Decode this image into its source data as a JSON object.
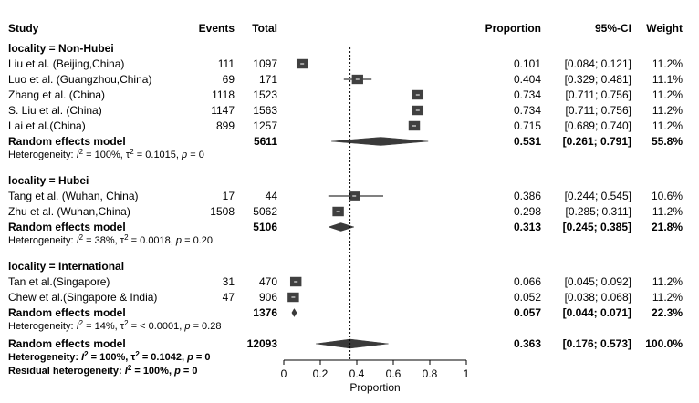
{
  "chart_data": {
    "type": "forest",
    "headers": {
      "study": "Study",
      "events": "Events",
      "total": "Total",
      "proportion": "Proportion",
      "ci": "95%-CI",
      "weight": "Weight"
    },
    "xlabel": "Proportion",
    "xlim": [
      0,
      1
    ],
    "xticks": [
      "0",
      "0.2",
      "0.4",
      "0.6",
      "0.8",
      "1"
    ],
    "reference_line": 0.363,
    "groups": [
      {
        "label": "locality = Non-Hubei",
        "studies": [
          {
            "study": "Liu et al. (Beijing,China)",
            "events": "111",
            "total": "1097",
            "proportion": 0.101,
            "lower": 0.084,
            "upper": 0.121,
            "prop_text": "0.101",
            "ci_text": "[0.084; 0.121]",
            "weight": "11.2%"
          },
          {
            "study": "Luo et al. (Guangzhou,China)",
            "events": "69",
            "total": "171",
            "proportion": 0.404,
            "lower": 0.329,
            "upper": 0.481,
            "prop_text": "0.404",
            "ci_text": "[0.329; 0.481]",
            "weight": "11.1%"
          },
          {
            "study": "Zhang et al. (China)",
            "events": "1118",
            "total": "1523",
            "proportion": 0.734,
            "lower": 0.711,
            "upper": 0.756,
            "prop_text": "0.734",
            "ci_text": "[0.711; 0.756]",
            "weight": "11.2%"
          },
          {
            "study": "S. Liu et al. (China)",
            "events": "1147",
            "total": "1563",
            "proportion": 0.734,
            "lower": 0.711,
            "upper": 0.756,
            "prop_text": "0.734",
            "ci_text": "[0.711; 0.756]",
            "weight": "11.2%"
          },
          {
            "study": "Lai et al.(China)",
            "events": "899",
            "total": "1257",
            "proportion": 0.715,
            "lower": 0.689,
            "upper": 0.74,
            "prop_text": "0.715",
            "ci_text": "[0.689; 0.740]",
            "weight": "11.2%"
          }
        ],
        "summary": {
          "label": "Random effects model",
          "total": "5611",
          "proportion": 0.531,
          "lower": 0.261,
          "upper": 0.791,
          "prop_text": "0.531",
          "ci_text": "[0.261; 0.791]",
          "weight": "55.8%"
        },
        "heterogeneity": {
          "prefix": "Heterogeneity: ",
          "i2": "I",
          "i2_value": " = 100%, ",
          "tau": "τ",
          "tau_value": " = 0.1015, ",
          "p": "p",
          "p_value": " = 0"
        }
      },
      {
        "label": "locality = Hubei",
        "studies": [
          {
            "study": "Tang et al. (Wuhan, China)",
            "events": "17",
            "total": "44",
            "proportion": 0.386,
            "lower": 0.244,
            "upper": 0.545,
            "prop_text": "0.386",
            "ci_text": "[0.244; 0.545]",
            "weight": "10.6%"
          },
          {
            "study": "Zhu et al. (Wuhan,China)",
            "events": "1508",
            "total": "5062",
            "proportion": 0.298,
            "lower": 0.285,
            "upper": 0.311,
            "prop_text": "0.298",
            "ci_text": "[0.285; 0.311]",
            "weight": "11.2%"
          }
        ],
        "summary": {
          "label": "Random effects model",
          "total": "5106",
          "proportion": 0.313,
          "lower": 0.245,
          "upper": 0.385,
          "prop_text": "0.313",
          "ci_text": "[0.245; 0.385]",
          "weight": "21.8%"
        },
        "heterogeneity": {
          "prefix": "Heterogeneity: ",
          "i2": "I",
          "i2_value": " = 38%, ",
          "tau": "τ",
          "tau_value": " = 0.0018, ",
          "p": "p",
          "p_value": " = 0.20"
        }
      },
      {
        "label": "locality = International",
        "studies": [
          {
            "study": "Tan et al.(Singapore)",
            "events": "31",
            "total": "470",
            "proportion": 0.066,
            "lower": 0.045,
            "upper": 0.092,
            "prop_text": "0.066",
            "ci_text": "[0.045; 0.092]",
            "weight": "11.2%"
          },
          {
            "study": "Chew et al.(Singapore & India)",
            "events": "47",
            "total": "906",
            "proportion": 0.052,
            "lower": 0.038,
            "upper": 0.068,
            "prop_text": "0.052",
            "ci_text": "[0.038; 0.068]",
            "weight": "11.2%"
          }
        ],
        "summary": {
          "label": "Random effects model",
          "total": "1376",
          "proportion": 0.057,
          "lower": 0.044,
          "upper": 0.071,
          "prop_text": "0.057",
          "ci_text": "[0.044; 0.071]",
          "weight": "22.3%"
        },
        "heterogeneity": {
          "prefix": "Heterogeneity: ",
          "i2": "I",
          "i2_value": " = 14%, ",
          "tau": "τ",
          "tau_value": " = < 0.0001, ",
          "p": "p",
          "p_value": " = 0.28"
        }
      }
    ],
    "overall": {
      "label": "Random effects model",
      "total": "12093",
      "proportion": 0.363,
      "lower": 0.176,
      "upper": 0.573,
      "prop_text": "0.363",
      "ci_text": "[0.176; 0.573]",
      "weight": "100.0%",
      "heterogeneity": {
        "prefix": "Heterogeneity: ",
        "i2": "I",
        "i2_value": " = 100%, ",
        "tau": "τ",
        "tau_value": " = 0.1042, ",
        "p": "p",
        "p_value": " = 0"
      },
      "residual": {
        "prefix": "Residual heterogeneity: ",
        "i2": "I",
        "i2_value": " = 100%, ",
        "p": "p",
        "p_value": " = 0"
      }
    },
    "colors": {
      "box": "#404040",
      "box_mark": "#ffffff",
      "diamond": "#3a3a3a",
      "line": "#000000",
      "ref_line": "#000000"
    }
  }
}
